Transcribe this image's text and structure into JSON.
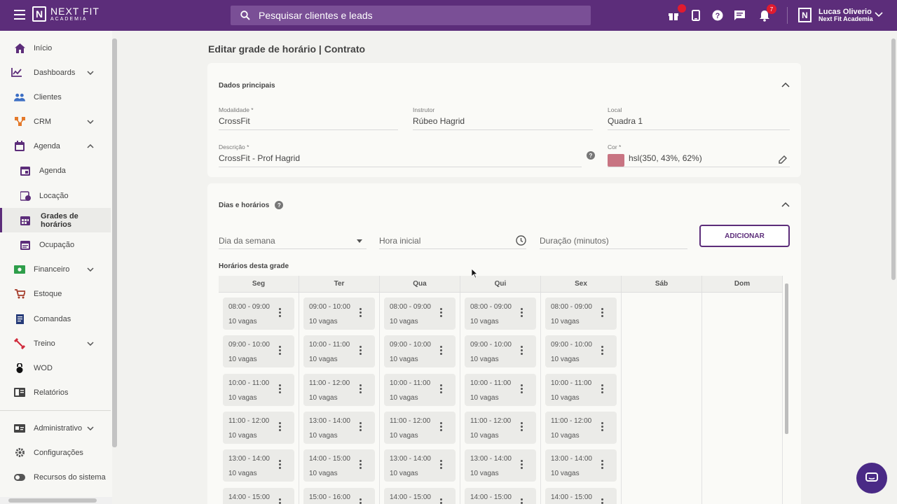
{
  "header": {
    "logo_line1": "NEXT FIT",
    "logo_line2": "ACADEMIA",
    "logo_mark": "N",
    "search_placeholder": "Pesquisar clientes e leads",
    "notifications_count": "7",
    "user_name": "Lucas Oliverio",
    "user_org": "Next Fit Academia",
    "icons": [
      "gift-icon",
      "mobile-icon",
      "help-icon",
      "chat-icon",
      "bell-icon"
    ]
  },
  "sidebar": {
    "items": [
      {
        "label": "Início",
        "icon": "home-icon"
      },
      {
        "label": "Dashboards",
        "icon": "chart-icon"
      },
      {
        "label": "Clientes",
        "icon": "people-icon"
      },
      {
        "label": "CRM",
        "icon": "crm-icon"
      },
      {
        "label": "Agenda",
        "icon": "calendar-icon"
      },
      {
        "label": "Agenda",
        "icon": "calendar-icon"
      },
      {
        "label": "Locação",
        "icon": "calendar-clock-icon"
      },
      {
        "label": "Grades de horários",
        "icon": "calendar-grid-icon"
      },
      {
        "label": "Ocupação",
        "icon": "calendar-list-icon"
      },
      {
        "label": "Financeiro",
        "icon": "money-icon"
      },
      {
        "label": "Estoque",
        "icon": "cart-icon"
      },
      {
        "label": "Comandas",
        "icon": "receipt-icon"
      },
      {
        "label": "Treino",
        "icon": "dumbbell-icon"
      },
      {
        "label": "WOD",
        "icon": "kettlebell-icon"
      },
      {
        "label": "Relatórios",
        "icon": "report-icon"
      },
      {
        "label": "Administrativo",
        "icon": "id-card-icon"
      },
      {
        "label": "Configurações",
        "icon": "gear-icon"
      },
      {
        "label": "Recursos do sistema",
        "icon": "toggle-icon"
      }
    ]
  },
  "page": {
    "title": "Editar grade de horário | Contrato"
  },
  "dados": {
    "title": "Dados principais",
    "modalidade_label": "Modalidade *",
    "modalidade_value": "CrossFit",
    "instrutor_label": "Instrutor",
    "instrutor_value": "Rúbeo Hagrid",
    "local_label": "Local",
    "local_value": "Quadra 1",
    "descricao_label": "Descrição *",
    "descricao_value": "CrossFit - Prof Hagrid",
    "cor_label": "Cor *",
    "cor_value": "hsl(350, 43%, 62%)",
    "help_glyph": "?"
  },
  "dias": {
    "title": "Dias e horários",
    "help_glyph": "?",
    "dia_placeholder": "Dia da semana",
    "hora_placeholder": "Hora inicial",
    "duracao_placeholder": "Duração (minutos)",
    "add_label": "ADICIONAR",
    "grid_title": "Horários desta grade",
    "days": [
      "Seg",
      "Ter",
      "Qua",
      "Qui",
      "Sex",
      "Sáb",
      "Dom"
    ],
    "columns": [
      [
        {
          "time": "08:00 - 09:00",
          "vagas": "10 vagas"
        },
        {
          "time": "09:00 - 10:00",
          "vagas": "10 vagas"
        },
        {
          "time": "10:00 - 11:00",
          "vagas": "10 vagas"
        },
        {
          "time": "11:00 - 12:00",
          "vagas": "10 vagas"
        },
        {
          "time": "13:00 - 14:00",
          "vagas": "10 vagas"
        },
        {
          "time": "14:00 - 15:00",
          "vagas": ""
        }
      ],
      [
        {
          "time": "09:00 - 10:00",
          "vagas": "10 vagas"
        },
        {
          "time": "10:00 - 11:00",
          "vagas": "10 vagas"
        },
        {
          "time": "11:00 - 12:00",
          "vagas": "10 vagas"
        },
        {
          "time": "13:00 - 14:00",
          "vagas": "10 vagas"
        },
        {
          "time": "14:00 - 15:00",
          "vagas": "10 vagas"
        },
        {
          "time": "15:00 - 16:00",
          "vagas": ""
        }
      ],
      [
        {
          "time": "08:00 - 09:00",
          "vagas": "10 vagas"
        },
        {
          "time": "09:00 - 10:00",
          "vagas": "10 vagas"
        },
        {
          "time": "10:00 - 11:00",
          "vagas": "10 vagas"
        },
        {
          "time": "11:00 - 12:00",
          "vagas": "10 vagas"
        },
        {
          "time": "13:00 - 14:00",
          "vagas": "10 vagas"
        },
        {
          "time": "14:00 - 15:00",
          "vagas": ""
        }
      ],
      [
        {
          "time": "08:00 - 09:00",
          "vagas": "10 vagas"
        },
        {
          "time": "09:00 - 10:00",
          "vagas": "10 vagas"
        },
        {
          "time": "10:00 - 11:00",
          "vagas": "10 vagas"
        },
        {
          "time": "11:00 - 12:00",
          "vagas": "10 vagas"
        },
        {
          "time": "13:00 - 14:00",
          "vagas": "10 vagas"
        },
        {
          "time": "14:00 - 15:00",
          "vagas": ""
        }
      ],
      [
        {
          "time": "08:00 - 09:00",
          "vagas": "10 vagas"
        },
        {
          "time": "09:00 - 10:00",
          "vagas": "10 vagas"
        },
        {
          "time": "10:00 - 11:00",
          "vagas": "10 vagas"
        },
        {
          "time": "11:00 - 12:00",
          "vagas": "10 vagas"
        },
        {
          "time": "13:00 - 14:00",
          "vagas": "10 vagas"
        },
        {
          "time": "14:00 - 15:00",
          "vagas": ""
        }
      ],
      [],
      []
    ]
  },
  "colors": {
    "brand": "#5c2d7a",
    "swatch": "#c77182",
    "badge": "#e01b2f",
    "chat": "#4a2a86"
  }
}
